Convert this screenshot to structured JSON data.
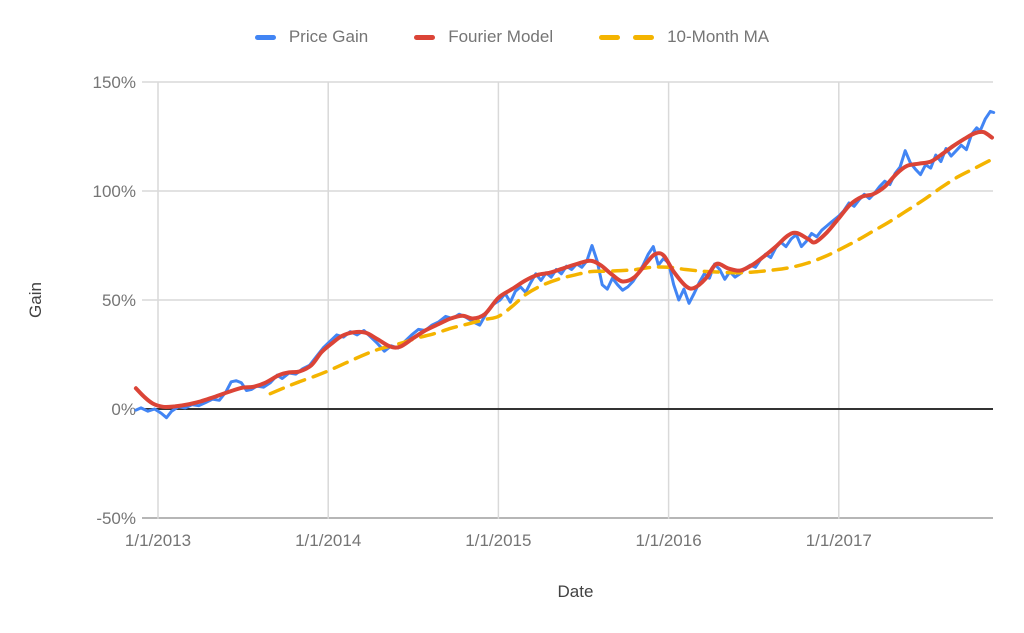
{
  "chart_data": {
    "type": "line",
    "title": "",
    "xlabel": "Date",
    "ylabel": "Gain",
    "x_tick_labels": [
      "1/1/2013",
      "1/1/2014",
      "1/1/2015",
      "1/1/2016",
      "1/1/2017"
    ],
    "x_tick_positions": [
      2013,
      2014,
      2015,
      2016,
      2017
    ],
    "y_tick_labels": [
      "150%",
      "100%",
      "50%",
      "0%",
      "-50%"
    ],
    "y_tick_values": [
      150,
      100,
      50,
      0,
      -50
    ],
    "xlim": [
      2012.86,
      2017.92
    ],
    "ylim": [
      -50,
      150
    ],
    "grid": true,
    "zero_line": true,
    "legend_position": "top",
    "y_unit": "percent",
    "series": [
      {
        "name": "Price Gain",
        "color": "#4285f4",
        "dash": "solid",
        "smooth": false,
        "points": [
          [
            2012.87,
            -0.5
          ],
          [
            2012.9,
            0.5
          ],
          [
            2012.94,
            -1
          ],
          [
            2012.98,
            0
          ],
          [
            2013.02,
            -2
          ],
          [
            2013.05,
            -4
          ],
          [
            2013.08,
            -1
          ],
          [
            2013.12,
            1
          ],
          [
            2013.16,
            0.5
          ],
          [
            2013.2,
            2
          ],
          [
            2013.24,
            1.5
          ],
          [
            2013.28,
            3
          ],
          [
            2013.32,
            4.5
          ],
          [
            2013.36,
            4
          ],
          [
            2013.4,
            8
          ],
          [
            2013.43,
            12.5
          ],
          [
            2013.46,
            13
          ],
          [
            2013.49,
            12
          ],
          [
            2013.52,
            8.5
          ],
          [
            2013.55,
            9
          ],
          [
            2013.58,
            10.5
          ],
          [
            2013.62,
            10
          ],
          [
            2013.66,
            12
          ],
          [
            2013.7,
            15.5
          ],
          [
            2013.73,
            14
          ],
          [
            2013.77,
            16.5
          ],
          [
            2013.81,
            16
          ],
          [
            2013.85,
            18.5
          ],
          [
            2013.89,
            20
          ],
          [
            2013.93,
            24
          ],
          [
            2013.97,
            28
          ],
          [
            2014.01,
            31
          ],
          [
            2014.05,
            34
          ],
          [
            2014.09,
            33
          ],
          [
            2014.13,
            35.5
          ],
          [
            2014.17,
            34
          ],
          [
            2014.21,
            36
          ],
          [
            2014.25,
            33
          ],
          [
            2014.29,
            30
          ],
          [
            2014.33,
            26.5
          ],
          [
            2014.37,
            29
          ],
          [
            2014.41,
            28
          ],
          [
            2014.45,
            31
          ],
          [
            2014.49,
            34
          ],
          [
            2014.53,
            36.5
          ],
          [
            2014.57,
            36
          ],
          [
            2014.61,
            38.5
          ],
          [
            2014.65,
            40
          ],
          [
            2014.69,
            42.5
          ],
          [
            2014.73,
            41.5
          ],
          [
            2014.77,
            43.5
          ],
          [
            2014.81,
            42
          ],
          [
            2014.85,
            40
          ],
          [
            2014.89,
            38.5
          ],
          [
            2014.93,
            44
          ],
          [
            2014.97,
            48
          ],
          [
            2015.01,
            50
          ],
          [
            2015.04,
            53
          ],
          [
            2015.07,
            49
          ],
          [
            2015.1,
            54
          ],
          [
            2015.13,
            56
          ],
          [
            2015.16,
            53.5
          ],
          [
            2015.19,
            58
          ],
          [
            2015.22,
            62
          ],
          [
            2015.25,
            59
          ],
          [
            2015.28,
            62.5
          ],
          [
            2015.31,
            60.5
          ],
          [
            2015.34,
            64
          ],
          [
            2015.37,
            62
          ],
          [
            2015.4,
            65.5
          ],
          [
            2015.43,
            64
          ],
          [
            2015.46,
            66.5
          ],
          [
            2015.49,
            65
          ],
          [
            2015.52,
            68
          ],
          [
            2015.55,
            75
          ],
          [
            2015.58,
            68
          ],
          [
            2015.61,
            57
          ],
          [
            2015.64,
            55
          ],
          [
            2015.67,
            60
          ],
          [
            2015.7,
            57
          ],
          [
            2015.73,
            54.5
          ],
          [
            2015.76,
            56
          ],
          [
            2015.79,
            58.5
          ],
          [
            2015.82,
            62
          ],
          [
            2015.85,
            66
          ],
          [
            2015.88,
            71
          ],
          [
            2015.91,
            74.5
          ],
          [
            2015.94,
            66
          ],
          [
            2015.97,
            69
          ],
          [
            2016.0,
            67
          ],
          [
            2016.03,
            57
          ],
          [
            2016.06,
            50
          ],
          [
            2016.09,
            55
          ],
          [
            2016.12,
            48.5
          ],
          [
            2016.15,
            53
          ],
          [
            2016.18,
            58
          ],
          [
            2016.21,
            62
          ],
          [
            2016.24,
            60
          ],
          [
            2016.27,
            66.5
          ],
          [
            2016.3,
            64
          ],
          [
            2016.33,
            59.5
          ],
          [
            2016.36,
            63
          ],
          [
            2016.39,
            60.5
          ],
          [
            2016.42,
            62
          ],
          [
            2016.45,
            64.5
          ],
          [
            2016.48,
            66
          ],
          [
            2016.51,
            65
          ],
          [
            2016.54,
            68.5
          ],
          [
            2016.57,
            71
          ],
          [
            2016.6,
            69.5
          ],
          [
            2016.63,
            74
          ],
          [
            2016.66,
            76.5
          ],
          [
            2016.69,
            74.5
          ],
          [
            2016.72,
            78
          ],
          [
            2016.75,
            80
          ],
          [
            2016.78,
            74.5
          ],
          [
            2016.81,
            77
          ],
          [
            2016.84,
            80.5
          ],
          [
            2016.87,
            79
          ],
          [
            2016.9,
            82
          ],
          [
            2016.93,
            84
          ],
          [
            2016.96,
            86
          ],
          [
            2017.0,
            88.5
          ],
          [
            2017.03,
            91
          ],
          [
            2017.06,
            94.5
          ],
          [
            2017.09,
            93
          ],
          [
            2017.12,
            96
          ],
          [
            2017.15,
            98.5
          ],
          [
            2017.18,
            96.5
          ],
          [
            2017.21,
            99
          ],
          [
            2017.24,
            102
          ],
          [
            2017.27,
            104.5
          ],
          [
            2017.3,
            103
          ],
          [
            2017.33,
            108
          ],
          [
            2017.36,
            111
          ],
          [
            2017.39,
            118.5
          ],
          [
            2017.42,
            113
          ],
          [
            2017.45,
            110
          ],
          [
            2017.48,
            107.5
          ],
          [
            2017.51,
            112
          ],
          [
            2017.54,
            110.5
          ],
          [
            2017.57,
            116.5
          ],
          [
            2017.6,
            113.5
          ],
          [
            2017.63,
            119.5
          ],
          [
            2017.66,
            116
          ],
          [
            2017.69,
            118.5
          ],
          [
            2017.72,
            121
          ],
          [
            2017.75,
            119
          ],
          [
            2017.78,
            126
          ],
          [
            2017.81,
            129
          ],
          [
            2017.83,
            127.5
          ],
          [
            2017.86,
            133
          ],
          [
            2017.89,
            136.5
          ],
          [
            2017.91,
            136
          ]
        ]
      },
      {
        "name": "Fourier Model",
        "color": "#db4437",
        "dash": "solid",
        "smooth": true,
        "points": [
          [
            2012.87,
            9.5
          ],
          [
            2012.92,
            5.5
          ],
          [
            2012.97,
            2.5
          ],
          [
            2013.03,
            1
          ],
          [
            2013.1,
            1.2
          ],
          [
            2013.17,
            2
          ],
          [
            2013.25,
            3.5
          ],
          [
            2013.33,
            5.5
          ],
          [
            2013.42,
            8
          ],
          [
            2013.5,
            9.8
          ],
          [
            2013.56,
            10.2
          ],
          [
            2013.63,
            12
          ],
          [
            2013.71,
            15.5
          ],
          [
            2013.77,
            16.8
          ],
          [
            2013.83,
            17.2
          ],
          [
            2013.9,
            20
          ],
          [
            2013.96,
            26
          ],
          [
            2014.02,
            30
          ],
          [
            2014.08,
            33.5
          ],
          [
            2014.15,
            35.2
          ],
          [
            2014.22,
            35
          ],
          [
            2014.29,
            32
          ],
          [
            2014.36,
            28.8
          ],
          [
            2014.42,
            28.5
          ],
          [
            2014.5,
            32.5
          ],
          [
            2014.57,
            36
          ],
          [
            2014.65,
            39
          ],
          [
            2014.72,
            41.5
          ],
          [
            2014.79,
            42.8
          ],
          [
            2014.85,
            41.5
          ],
          [
            2014.92,
            43.5
          ],
          [
            2015.0,
            51
          ],
          [
            2015.08,
            55
          ],
          [
            2015.16,
            59
          ],
          [
            2015.23,
            61.5
          ],
          [
            2015.3,
            62.5
          ],
          [
            2015.38,
            64.5
          ],
          [
            2015.46,
            66.5
          ],
          [
            2015.54,
            68
          ],
          [
            2015.6,
            66
          ],
          [
            2015.67,
            61.5
          ],
          [
            2015.73,
            58.5
          ],
          [
            2015.8,
            60.5
          ],
          [
            2015.87,
            67
          ],
          [
            2015.92,
            71
          ],
          [
            2015.97,
            70.5
          ],
          [
            2016.03,
            63
          ],
          [
            2016.1,
            56.5
          ],
          [
            2016.15,
            55.5
          ],
          [
            2016.22,
            60
          ],
          [
            2016.28,
            66.5
          ],
          [
            2016.35,
            64.5
          ],
          [
            2016.42,
            63.5
          ],
          [
            2016.49,
            66
          ],
          [
            2016.56,
            70
          ],
          [
            2016.63,
            74.5
          ],
          [
            2016.7,
            79.5
          ],
          [
            2016.75,
            80.8
          ],
          [
            2016.82,
            78
          ],
          [
            2016.86,
            76.5
          ],
          [
            2016.93,
            81
          ],
          [
            2017.0,
            87.5
          ],
          [
            2017.07,
            94
          ],
          [
            2017.14,
            97.5
          ],
          [
            2017.2,
            98.5
          ],
          [
            2017.27,
            102
          ],
          [
            2017.34,
            108
          ],
          [
            2017.4,
            111.5
          ],
          [
            2017.47,
            112.5
          ],
          [
            2017.54,
            113.5
          ],
          [
            2017.6,
            116.5
          ],
          [
            2017.67,
            120.5
          ],
          [
            2017.74,
            124
          ],
          [
            2017.8,
            126.5
          ],
          [
            2017.85,
            127
          ],
          [
            2017.9,
            124.5
          ]
        ]
      },
      {
        "name": "10-Month MA",
        "color": "#f4b400",
        "dash": "dashed",
        "smooth": true,
        "points": [
          [
            2013.66,
            7
          ],
          [
            2013.75,
            10
          ],
          [
            2013.83,
            12.5
          ],
          [
            2013.92,
            15
          ],
          [
            2014.0,
            17.5
          ],
          [
            2014.1,
            21
          ],
          [
            2014.2,
            24.5
          ],
          [
            2014.3,
            27.5
          ],
          [
            2014.42,
            30
          ],
          [
            2014.52,
            32.5
          ],
          [
            2014.62,
            34.5
          ],
          [
            2014.72,
            37
          ],
          [
            2014.82,
            39
          ],
          [
            2014.92,
            41
          ],
          [
            2015.0,
            42.5
          ],
          [
            2015.08,
            47
          ],
          [
            2015.16,
            52.5
          ],
          [
            2015.25,
            56.5
          ],
          [
            2015.35,
            59.5
          ],
          [
            2015.45,
            61.5
          ],
          [
            2015.54,
            63
          ],
          [
            2015.63,
            63.2
          ],
          [
            2015.72,
            63.5
          ],
          [
            2015.81,
            64
          ],
          [
            2015.9,
            65
          ],
          [
            2016.0,
            65
          ],
          [
            2016.1,
            64
          ],
          [
            2016.2,
            63.2
          ],
          [
            2016.3,
            62.8
          ],
          [
            2016.42,
            62.5
          ],
          [
            2016.52,
            63
          ],
          [
            2016.62,
            63.8
          ],
          [
            2016.72,
            65
          ],
          [
            2016.82,
            67
          ],
          [
            2016.92,
            70
          ],
          [
            2017.0,
            73
          ],
          [
            2017.1,
            77
          ],
          [
            2017.2,
            81.5
          ],
          [
            2017.3,
            86
          ],
          [
            2017.4,
            91
          ],
          [
            2017.5,
            96
          ],
          [
            2017.6,
            101.5
          ],
          [
            2017.7,
            106.5
          ],
          [
            2017.8,
            110.5
          ],
          [
            2017.9,
            114.5
          ]
        ]
      }
    ]
  }
}
